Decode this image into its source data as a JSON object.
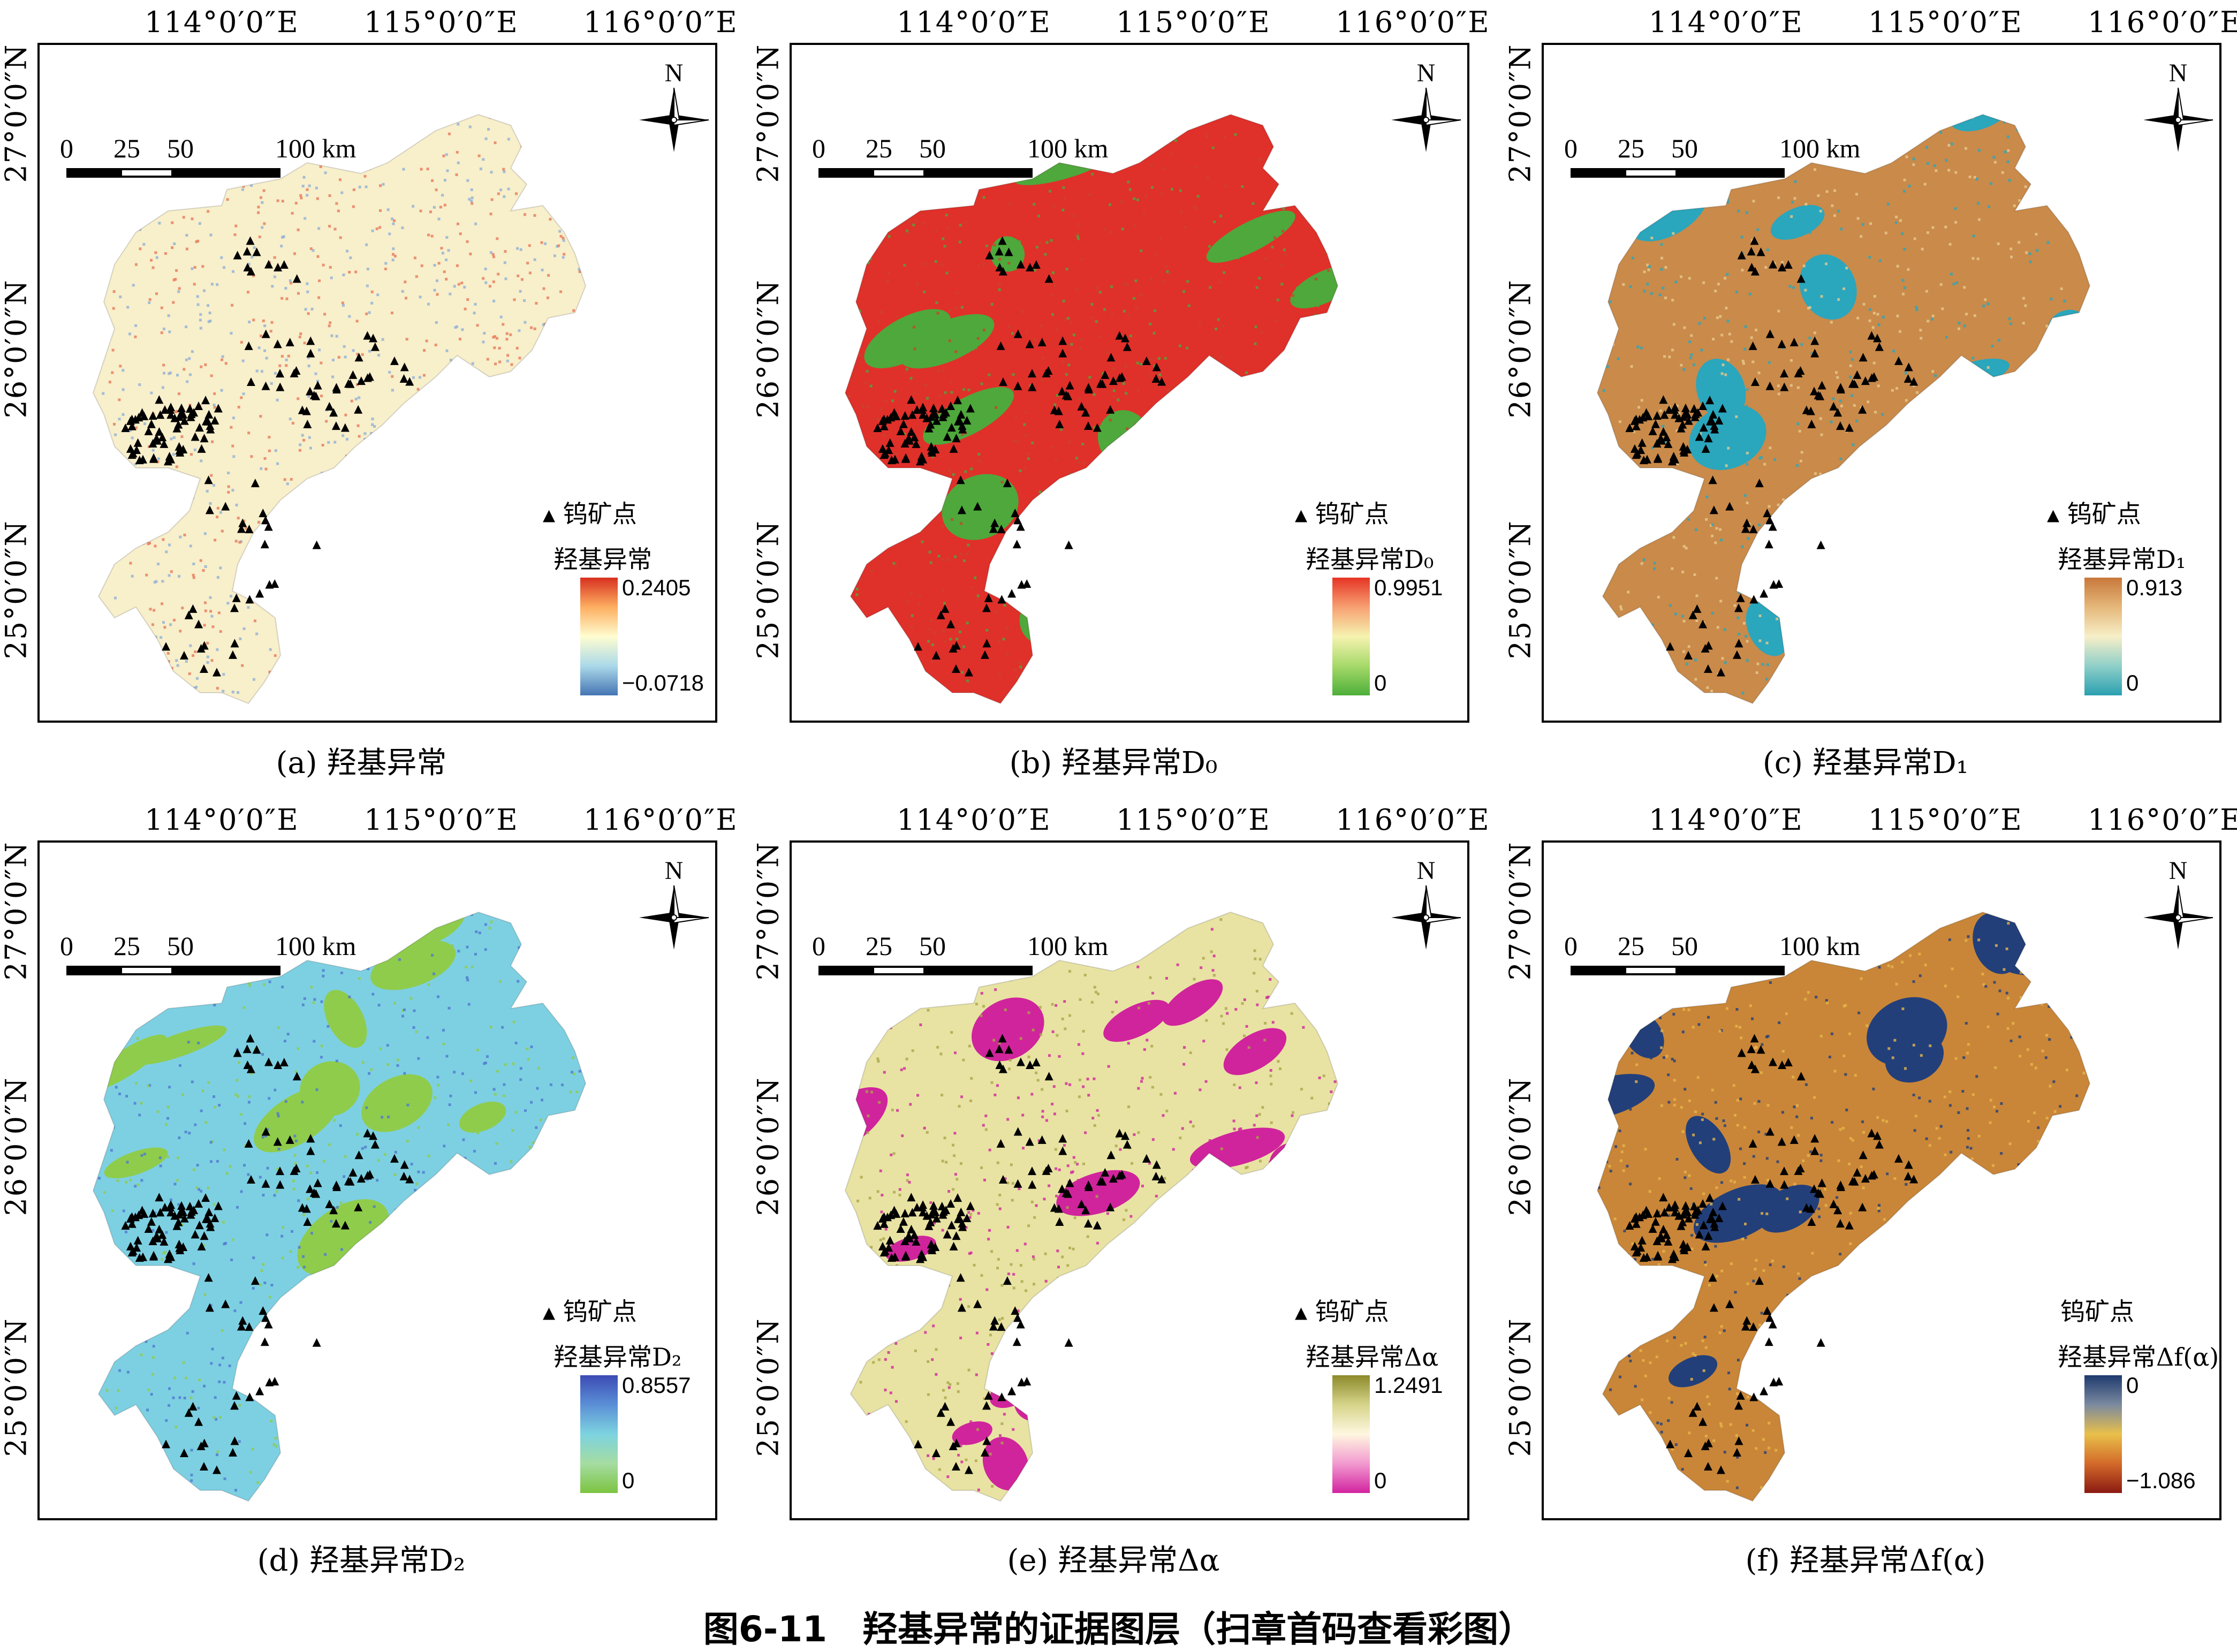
{
  "figure_title": "图6-11　羟基异常的证据图层（扫章首码查看彩图）",
  "axes": {
    "lon_labels": [
      "114°0′0″E",
      "115°0′0″E",
      "116°0′0″E"
    ],
    "lat_labels": [
      "27°0′0″N",
      "26°0′0″N",
      "25°0′0″N"
    ]
  },
  "scale_bar": {
    "ticks": [
      "0",
      "25",
      "50",
      "100 km"
    ]
  },
  "north_label": "N",
  "point_legend_label": "钨矿点",
  "panels": [
    {
      "caption": "(a) 羟基异常",
      "legend_title": "羟基异常",
      "max": "0.2405",
      "min": "−0.0718",
      "ramp": [
        "#d7301f",
        "#fdae61",
        "#fffdd0",
        "#abd9e9",
        "#4575b4"
      ],
      "base": "#f8efcb",
      "accent": "#8fb0d6",
      "accent2": "#e6795a",
      "point_marker": true
    },
    {
      "caption": "(b) 羟基异常D₀",
      "legend_title": "羟基异常D₀",
      "max": "0.9951",
      "min": "0",
      "ramp": [
        "#e53424",
        "#f7a072",
        "#f6f3b0",
        "#a6d96a",
        "#4daf3a"
      ],
      "base": "#e0302a",
      "accent": "#4ea83b",
      "accent2": "#c9442d",
      "point_marker": true
    },
    {
      "caption": "(c) 羟基异常D₁",
      "legend_title": "羟基异常D₁",
      "max": "0.913",
      "min": "0",
      "ramp": [
        "#c8783a",
        "#e5b77a",
        "#f7efc8",
        "#8fcfc9",
        "#2aa0b0"
      ],
      "base": "#c98a4a",
      "accent": "#2aa6bd",
      "accent2": "#e8c98c",
      "point_marker": true
    },
    {
      "caption": "(d) 羟基异常D₂",
      "legend_title": "羟基异常D₂",
      "max": "0.8557",
      "min": "0",
      "ramp": [
        "#3c4bb5",
        "#5b8fd6",
        "#7dd3e0",
        "#a5dca1",
        "#7cc441"
      ],
      "base": "#7dd0e2",
      "accent": "#8fcc4c",
      "accent2": "#4f78d0",
      "point_marker": true
    },
    {
      "caption": "(e) 羟基异常Δα",
      "legend_title": "羟基异常Δα",
      "max": "1.2491",
      "min": "0",
      "ramp": [
        "#8c8a2a",
        "#d6d48a",
        "#fff7e0",
        "#f29ad0",
        "#d2239f"
      ],
      "base": "#e8e3a3",
      "accent": "#d0249c",
      "accent2": "#a9a548",
      "point_marker": true
    },
    {
      "caption": "(f) 羟基异常Δf(α)",
      "legend_title": "羟基异常Δf(α)",
      "max": "0",
      "min": "−1.086",
      "ramp": [
        "#1e3a6e",
        "#7b8aa0",
        "#e9c04a",
        "#d36a2a",
        "#8b1a12"
      ],
      "base": "#c98638",
      "accent": "#223f7a",
      "accent2": "#e7b64a",
      "point_marker": false
    }
  ],
  "colors": {
    "frame": "#000000",
    "points": "#000000"
  }
}
